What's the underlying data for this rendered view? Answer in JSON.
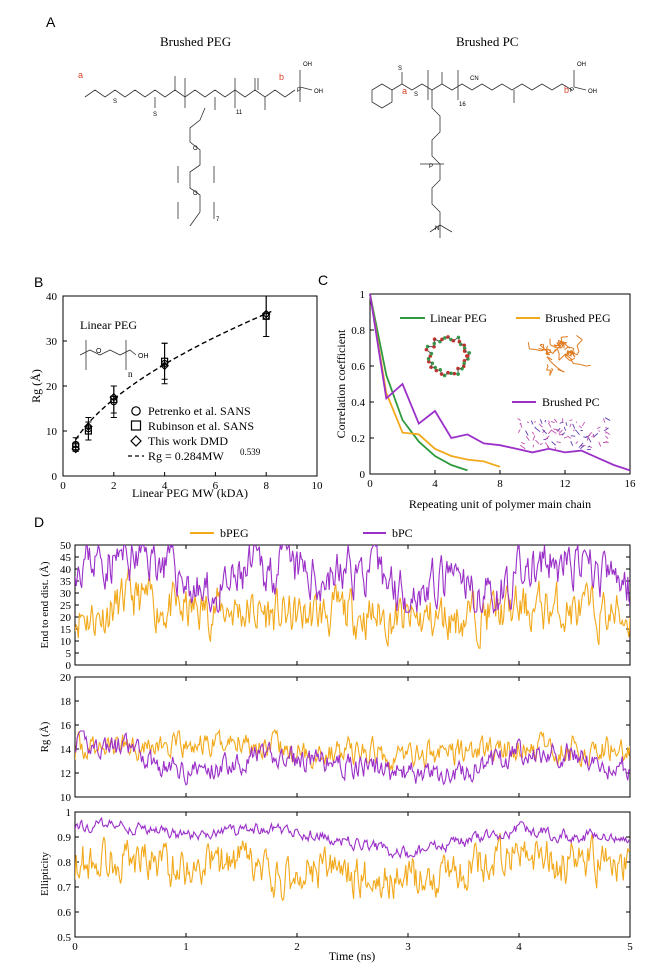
{
  "panels": {
    "a": {
      "label": "A",
      "title_left": "Brushed PEG",
      "title_right": "Brushed PC",
      "left_group_a": "a",
      "left_group_b": "b",
      "right_group_a": "a",
      "right_group_b": "b",
      "left_sub_11": "11",
      "left_sub_7": "7",
      "right_sub_16": "16",
      "right_cn": "CN",
      "oh": "OH",
      "p": "P",
      "o": "O",
      "s": "S",
      "n": "N"
    },
    "b": {
      "label": "B"
    },
    "c": {
      "label": "C"
    },
    "d": {
      "label": "D"
    }
  },
  "colors": {
    "bpeg": "#f2a91c",
    "bpc": "#9b30c8",
    "linear_peg": "#2e9a3b",
    "green_node": "#3aa04a",
    "red_node": "#c8302a"
  },
  "chart_data": [
    {
      "id": "B",
      "type": "scatter",
      "xlabel": "Linear PEG MW (kDA)",
      "ylabel": "Rg (Å)",
      "xlim": [
        0,
        10
      ],
      "ylim": [
        0,
        40
      ],
      "xticks": [
        "0",
        "2",
        "4",
        "6",
        "8",
        "10"
      ],
      "yticks": [
        "0",
        "10",
        "20",
        "30",
        "40"
      ],
      "inset_label": "Linear PEG",
      "inset_n": "n",
      "inset_o": "O",
      "inset_oh": "OH",
      "legend": [
        "Petrenko et al. SANS",
        "Rubinson et al. SANS",
        "This work DMD",
        "Rg = 0.284MW"
      ],
      "fit_exponent": "0.539",
      "fit": {
        "a": 0.284,
        "b": 0.539
      },
      "series": [
        {
          "name": "Petrenko et al. SANS",
          "marker": "circle",
          "x": [
            0.5,
            1.0,
            2.0,
            4.0,
            8.0
          ],
          "y": [
            7.0,
            10.5,
            16.5,
            25.0,
            35.5
          ],
          "err": [
            1.5,
            2.5,
            3.5,
            4.5,
            4.5
          ]
        },
        {
          "name": "Rubinson et al. SANS",
          "marker": "square",
          "x": [
            0.5,
            1.0,
            2.0,
            4.0,
            8.0
          ],
          "y": [
            6.5,
            10.0,
            17.0,
            25.5,
            35.5
          ],
          "err": [
            1.0,
            2.0,
            3.0,
            4.0,
            4.5
          ]
        },
        {
          "name": "This work DMD",
          "marker": "diamond",
          "x": [
            0.5,
            1.0,
            2.0,
            4.0,
            8.0
          ],
          "y": [
            6.0,
            11.0,
            17.5,
            24.5,
            36.0
          ],
          "err": [
            0,
            0,
            0,
            0,
            0
          ]
        }
      ]
    },
    {
      "id": "C",
      "type": "line",
      "xlabel": "Repeating unit of polymer main chain",
      "ylabel": "Correlation coefficient",
      "xlim": [
        0,
        16
      ],
      "ylim": [
        0,
        1
      ],
      "xticks": [
        "0",
        "4",
        "8",
        "12",
        "16"
      ],
      "yticks": [
        "0",
        "0.2",
        "0.4",
        "0.6",
        "0.8",
        "1"
      ],
      "legend_labels": [
        "Linear PEG",
        "Brushed PEG",
        "Brushed PC"
      ],
      "series": [
        {
          "name": "Linear PEG",
          "x": [
            0,
            1,
            2,
            3,
            4,
            5,
            6
          ],
          "y": [
            1.0,
            0.55,
            0.3,
            0.18,
            0.1,
            0.05,
            0.02
          ]
        },
        {
          "name": "Brushed PEG",
          "x": [
            0,
            1,
            2,
            3,
            4,
            5,
            6,
            7,
            8
          ],
          "y": [
            1.0,
            0.45,
            0.23,
            0.22,
            0.14,
            0.1,
            0.08,
            0.07,
            0.04
          ]
        },
        {
          "name": "Brushed PC",
          "x": [
            0,
            1,
            2,
            3,
            4,
            5,
            6,
            7,
            8,
            9,
            10,
            11,
            12,
            13,
            14,
            15,
            16
          ],
          "y": [
            1.0,
            0.42,
            0.5,
            0.28,
            0.35,
            0.2,
            0.22,
            0.17,
            0.16,
            0.14,
            0.12,
            0.14,
            0.12,
            0.13,
            0.09,
            0.05,
            0.02
          ]
        }
      ]
    },
    {
      "id": "D",
      "type": "line",
      "legend": [
        "bPEG",
        "bPC"
      ],
      "xlabel": "Time (ns)",
      "xlim": [
        0,
        5
      ],
      "xticks": [
        "0",
        "1",
        "2",
        "3",
        "4",
        "5"
      ],
      "subplots": [
        {
          "ylabel": "End to end dist. (Å)",
          "ylim": [
            0,
            50
          ],
          "yticks": [
            "0",
            "5",
            "10",
            "15",
            "20",
            "25",
            "30",
            "35",
            "40",
            "45",
            "50"
          ],
          "bpeg": {
            "mean": 22,
            "amp": 8,
            "min": 7,
            "max": 40,
            "seed": 11
          },
          "bpc": {
            "mean": 37,
            "amp": 8,
            "min": 22,
            "max": 50,
            "seed": 23
          },
          "bpeg_keys": [
            [
              0,
              22
            ],
            [
              0.2,
              20
            ],
            [
              0.5,
              28
            ],
            [
              0.8,
              24
            ],
            [
              1,
              22
            ],
            [
              1.3,
              24
            ],
            [
              1.6,
              22
            ],
            [
              2,
              20
            ],
            [
              2.4,
              22
            ],
            [
              2.8,
              20
            ],
            [
              3,
              18
            ],
            [
              3.4,
              20
            ],
            [
              3.8,
              22
            ],
            [
              4.2,
              24
            ],
            [
              4.6,
              22
            ],
            [
              5,
              20
            ]
          ],
          "bpc_keys": [
            [
              0,
              45
            ],
            [
              0.3,
              44
            ],
            [
              0.7,
              45
            ],
            [
              0.9,
              40
            ],
            [
              1.1,
              30
            ],
            [
              1.3,
              28
            ],
            [
              1.6,
              40
            ],
            [
              1.9,
              40
            ],
            [
              2.2,
              36
            ],
            [
              2.5,
              40
            ],
            [
              2.8,
              36
            ],
            [
              3.0,
              30
            ],
            [
              3.4,
              35
            ],
            [
              3.6,
              30
            ],
            [
              3.8,
              30
            ],
            [
              4.0,
              38
            ],
            [
              4.4,
              42
            ],
            [
              4.7,
              38
            ],
            [
              5,
              33
            ]
          ]
        },
        {
          "ylabel": "Rg (Å)",
          "ylim": [
            10,
            20
          ],
          "yticks": [
            "10",
            "12",
            "14",
            "16",
            "18",
            "20"
          ],
          "bpeg": {
            "mean": 13.8,
            "amp": 0.9,
            "min": 11.5,
            "max": 16.2,
            "seed": 37
          },
          "bpc": {
            "mean": 13.0,
            "amp": 0.8,
            "min": 11.0,
            "max": 15.5,
            "seed": 41
          },
          "bpeg_keys": [
            [
              0,
              14
            ],
            [
              0.5,
              14.5
            ],
            [
              1,
              14
            ],
            [
              1.5,
              14.8
            ],
            [
              2,
              13.6
            ],
            [
              2.5,
              13.8
            ],
            [
              3,
              13.5
            ],
            [
              3.5,
              13.8
            ],
            [
              4,
              14
            ],
            [
              4.5,
              14
            ],
            [
              5,
              14
            ]
          ],
          "bpc_keys": [
            [
              0,
              14.5
            ],
            [
              0.5,
              14
            ],
            [
              0.8,
              12.5
            ],
            [
              1.2,
              12.2
            ],
            [
              1.6,
              13.5
            ],
            [
              2,
              13
            ],
            [
              2.4,
              12.8
            ],
            [
              2.8,
              12.2
            ],
            [
              3.2,
              11.8
            ],
            [
              3.6,
              12.2
            ],
            [
              4,
              13.8
            ],
            [
              4.5,
              13.5
            ],
            [
              4.8,
              12.5
            ],
            [
              5,
              12.5
            ]
          ]
        },
        {
          "ylabel": "Ellipticity",
          "ylim": [
            0.5,
            1
          ],
          "yticks": [
            "0.5",
            "0.6",
            "0.7",
            "0.8",
            "0.9",
            "1"
          ],
          "bpeg": {
            "mean": 0.79,
            "amp": 0.07,
            "min": 0.5,
            "max": 0.95,
            "seed": 53
          },
          "bpc": {
            "mean": 0.92,
            "amp": 0.02,
            "min": 0.8,
            "max": 0.98,
            "seed": 59
          },
          "bpeg_keys": [
            [
              0,
              0.8
            ],
            [
              0.5,
              0.82
            ],
            [
              1,
              0.78
            ],
            [
              1.5,
              0.8
            ],
            [
              1.8,
              0.72
            ],
            [
              2.2,
              0.78
            ],
            [
              2.5,
              0.75
            ],
            [
              3,
              0.72
            ],
            [
              3.5,
              0.78
            ],
            [
              4,
              0.82
            ],
            [
              4.5,
              0.8
            ],
            [
              5,
              0.8
            ]
          ],
          "bpc_keys": [
            [
              0,
              0.95
            ],
            [
              0.5,
              0.94
            ],
            [
              1,
              0.9
            ],
            [
              1.5,
              0.93
            ],
            [
              2,
              0.92
            ],
            [
              2.5,
              0.88
            ],
            [
              3,
              0.83
            ],
            [
              3.5,
              0.88
            ],
            [
              4,
              0.93
            ],
            [
              4.5,
              0.9
            ],
            [
              5,
              0.9
            ]
          ]
        }
      ]
    }
  ]
}
